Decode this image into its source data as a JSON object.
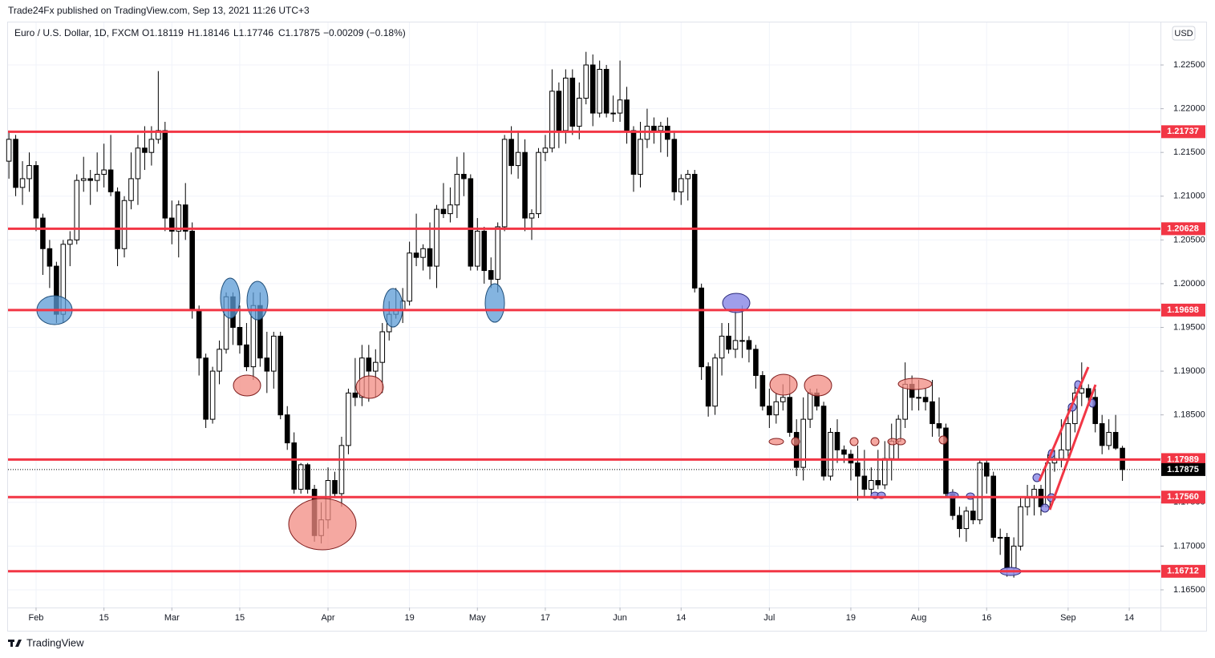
{
  "header": {
    "publisher": "Trade24Fx published on TradingView.com, Sep 13, 2021 11:26 UTC+3",
    "brand": "TradingView"
  },
  "chart_data": {
    "type": "candlestick",
    "title": "Euro / U.S. Dollar, 1D, FXCM",
    "legend_values": [
      "O1.18119",
      "H1.18146",
      "L1.17746",
      "C1.17875",
      "−0.00209 (−0.18%)"
    ],
    "currency": "USD",
    "up_color": "#ffffff",
    "down_color": "#000000",
    "level_color": "#f23645",
    "grid": true,
    "xlim": [
      -0.13,
      169.6
    ],
    "xticks": [
      {
        "value": 4,
        "label": "Feb"
      },
      {
        "value": 14,
        "label": "15"
      },
      {
        "value": 24,
        "label": "Mar"
      },
      {
        "value": 34,
        "label": "15"
      },
      {
        "value": 47,
        "label": "Apr"
      },
      {
        "value": 59,
        "label": "19"
      },
      {
        "value": 69,
        "label": "May"
      },
      {
        "value": 79,
        "label": "17"
      },
      {
        "value": 90,
        "label": "Jun"
      },
      {
        "value": 99,
        "label": "14"
      },
      {
        "value": 112,
        "label": "Jul"
      },
      {
        "value": 124,
        "label": "19"
      },
      {
        "value": 134,
        "label": "Aug"
      },
      {
        "value": 144,
        "label": "16"
      },
      {
        "value": 156,
        "label": "Sep"
      },
      {
        "value": 165,
        "label": "14"
      }
    ],
    "ylim": [
      1.16298,
      1.22986
    ],
    "yticks": [
      {
        "value": 1.165,
        "label": "1.16500"
      },
      {
        "value": 1.17,
        "label": "1.17000"
      },
      {
        "value": 1.175,
        "label": "1.17500"
      },
      {
        "value": 1.18,
        "label": "1.18000"
      },
      {
        "value": 1.185,
        "label": "1.18500"
      },
      {
        "value": 1.19,
        "label": "1.19000"
      },
      {
        "value": 1.195,
        "label": "1.19500"
      },
      {
        "value": 1.2,
        "label": "1.20000"
      },
      {
        "value": 1.205,
        "label": "1.20500"
      },
      {
        "value": 1.21,
        "label": "1.21000"
      },
      {
        "value": 1.215,
        "label": "1.21500"
      },
      {
        "value": 1.22,
        "label": "1.22000"
      },
      {
        "value": 1.225,
        "label": "1.22500"
      }
    ],
    "levels": [
      1.21737,
      1.20628,
      1.19698,
      1.17989,
      {
        "value": 1.1756,
        "label": "1.17560"
      },
      1.16712
    ],
    "last_price": 1.17875,
    "ohlc": [
      [
        1.214,
        1.2175,
        1.212,
        1.2165
      ],
      [
        1.2165,
        1.217,
        1.21,
        1.211
      ],
      [
        1.211,
        1.214,
        1.209,
        1.212
      ],
      [
        1.212,
        1.215,
        1.2105,
        1.2135
      ],
      [
        1.2135,
        1.214,
        1.206,
        1.2075
      ],
      [
        1.2075,
        1.208,
        1.201,
        1.204
      ],
      [
        1.204,
        1.205,
        1.1995,
        1.202
      ],
      [
        1.202,
        1.2025,
        1.1955,
        1.1965
      ],
      [
        1.1965,
        1.205,
        1.1955,
        1.2045
      ],
      [
        1.2045,
        1.206,
        1.202,
        1.205
      ],
      [
        1.205,
        1.2125,
        1.2045,
        1.2118
      ],
      [
        1.2118,
        1.2145,
        1.2105,
        1.212
      ],
      [
        1.212,
        1.213,
        1.209,
        1.2118
      ],
      [
        1.2118,
        1.215,
        1.2105,
        1.2125
      ],
      [
        1.2125,
        1.216,
        1.211,
        1.213
      ],
      [
        1.213,
        1.217,
        1.21,
        1.2105
      ],
      [
        1.2105,
        1.211,
        1.202,
        1.204
      ],
      [
        1.204,
        1.21,
        1.203,
        1.2095
      ],
      [
        1.2095,
        1.215,
        1.2085,
        1.212
      ],
      [
        1.212,
        1.217,
        1.209,
        1.2155
      ],
      [
        1.2155,
        1.218,
        1.213,
        1.215
      ],
      [
        1.215,
        1.218,
        1.2135,
        1.2165
      ],
      [
        1.2165,
        1.2243,
        1.216,
        1.2175
      ],
      [
        1.2175,
        1.2185,
        1.206,
        1.2075
      ],
      [
        1.2075,
        1.2095,
        1.2045,
        1.206
      ],
      [
        1.206,
        1.2095,
        1.203,
        1.209
      ],
      [
        1.209,
        1.2115,
        1.205,
        1.206
      ],
      [
        1.206,
        1.207,
        1.196,
        1.197
      ],
      [
        1.197,
        1.1975,
        1.1895,
        1.1915
      ],
      [
        1.1915,
        1.192,
        1.1835,
        1.1845
      ],
      [
        1.1845,
        1.1905,
        1.184,
        1.19
      ],
      [
        1.19,
        1.1935,
        1.1885,
        1.1925
      ],
      [
        1.1925,
        1.199,
        1.192,
        1.1985
      ],
      [
        1.1985,
        1.199,
        1.193,
        1.195
      ],
      [
        1.195,
        1.1975,
        1.192,
        1.193
      ],
      [
        1.193,
        1.1955,
        1.19,
        1.1905
      ],
      [
        1.1905,
        1.199,
        1.189,
        1.1975
      ],
      [
        1.1975,
        1.199,
        1.1905,
        1.1915
      ],
      [
        1.1915,
        1.1945,
        1.1875,
        1.19
      ],
      [
        1.19,
        1.1945,
        1.188,
        1.194
      ],
      [
        1.194,
        1.1945,
        1.1845,
        1.185
      ],
      [
        1.185,
        1.186,
        1.181,
        1.1818
      ],
      [
        1.1818,
        1.183,
        1.176,
        1.1765
      ],
      [
        1.1765,
        1.1795,
        1.176,
        1.1793
      ],
      [
        1.1793,
        1.1795,
        1.176,
        1.1765
      ],
      [
        1.1765,
        1.177,
        1.1705,
        1.1712
      ],
      [
        1.1712,
        1.175,
        1.1703,
        1.173
      ],
      [
        1.173,
        1.179,
        1.172,
        1.1775
      ],
      [
        1.1775,
        1.1785,
        1.1755,
        1.176
      ],
      [
        1.176,
        1.1825,
        1.1745,
        1.1815
      ],
      [
        1.1815,
        1.188,
        1.1805,
        1.1875
      ],
      [
        1.1875,
        1.1915,
        1.186,
        1.187
      ],
      [
        1.187,
        1.193,
        1.186,
        1.1915
      ],
      [
        1.1915,
        1.193,
        1.1865,
        1.19
      ],
      [
        1.19,
        1.1925,
        1.187,
        1.191
      ],
      [
        1.191,
        1.1955,
        1.1875,
        1.1945
      ],
      [
        1.1945,
        1.198,
        1.1935,
        1.1965
      ],
      [
        1.1965,
        1.1995,
        1.196,
        1.197
      ],
      [
        1.197,
        1.1995,
        1.1955,
        1.198
      ],
      [
        1.198,
        1.2048,
        1.1975,
        1.2035
      ],
      [
        1.2035,
        1.208,
        1.202,
        1.203
      ],
      [
        1.203,
        1.2045,
        1.2015,
        1.204
      ],
      [
        1.204,
        1.207,
        1.2005,
        1.202
      ],
      [
        1.202,
        1.209,
        1.1995,
        1.2085
      ],
      [
        1.2085,
        1.2115,
        1.2075,
        1.208
      ],
      [
        1.208,
        1.211,
        1.207,
        1.209
      ],
      [
        1.209,
        1.2145,
        1.2075,
        1.2125
      ],
      [
        1.2125,
        1.215,
        1.21,
        1.212
      ],
      [
        1.212,
        1.2125,
        1.2015,
        1.202
      ],
      [
        1.202,
        1.2075,
        1.2015,
        1.206
      ],
      [
        1.206,
        1.2065,
        1.2,
        1.2015
      ],
      [
        1.2015,
        1.203,
        1.1995,
        1.2005
      ],
      [
        1.2005,
        1.207,
        1.199,
        1.2065
      ],
      [
        1.2065,
        1.217,
        1.206,
        1.2165
      ],
      [
        1.2165,
        1.218,
        1.2125,
        1.2135
      ],
      [
        1.2135,
        1.2175,
        1.212,
        1.215
      ],
      [
        1.215,
        1.2165,
        1.206,
        1.2075
      ],
      [
        1.2075,
        1.2085,
        1.205,
        1.208
      ],
      [
        1.208,
        1.2155,
        1.2075,
        1.215
      ],
      [
        1.215,
        1.217,
        1.214,
        1.2155
      ],
      [
        1.2155,
        1.2245,
        1.215,
        1.222
      ],
      [
        1.222,
        1.223,
        1.2155,
        1.2175
      ],
      [
        1.2175,
        1.2245,
        1.216,
        1.2235
      ],
      [
        1.2235,
        1.2245,
        1.217,
        1.218
      ],
      [
        1.218,
        1.223,
        1.2165,
        1.2212
      ],
      [
        1.2212,
        1.2265,
        1.2205,
        1.225
      ],
      [
        1.225,
        1.2262,
        1.218,
        1.2195
      ],
      [
        1.2195,
        1.2255,
        1.219,
        1.2245
      ],
      [
        1.2245,
        1.225,
        1.219,
        1.2195
      ],
      [
        1.2195,
        1.2215,
        1.2185,
        1.2195
      ],
      [
        1.2195,
        1.2255,
        1.2185,
        1.221
      ],
      [
        1.221,
        1.2225,
        1.216,
        1.2175
      ],
      [
        1.2175,
        1.218,
        1.2105,
        1.2125
      ],
      [
        1.2125,
        1.2185,
        1.211,
        1.2165
      ],
      [
        1.2165,
        1.22,
        1.2155,
        1.218
      ],
      [
        1.218,
        1.219,
        1.216,
        1.2175
      ],
      [
        1.2175,
        1.2185,
        1.215,
        1.218
      ],
      [
        1.218,
        1.219,
        1.2145,
        1.2165
      ],
      [
        1.2165,
        1.2175,
        1.2095,
        1.2105
      ],
      [
        1.2105,
        1.2125,
        1.209,
        1.212
      ],
      [
        1.212,
        1.213,
        1.2095,
        1.2125
      ],
      [
        1.2125,
        1.213,
        1.199,
        1.1995
      ],
      [
        1.1995,
        1.2,
        1.189,
        1.1905
      ],
      [
        1.1905,
        1.191,
        1.1848,
        1.186
      ],
      [
        1.186,
        1.192,
        1.185,
        1.1915
      ],
      [
        1.1915,
        1.1955,
        1.1895,
        1.194
      ],
      [
        1.194,
        1.1955,
        1.192,
        1.1925
      ],
      [
        1.1925,
        1.197,
        1.1915,
        1.1935
      ],
      [
        1.1935,
        1.1975,
        1.1915,
        1.1935
      ],
      [
        1.1935,
        1.194,
        1.191,
        1.1925
      ],
      [
        1.1925,
        1.193,
        1.188,
        1.1895
      ],
      [
        1.1895,
        1.19,
        1.1855,
        1.186
      ],
      [
        1.186,
        1.188,
        1.1835,
        1.185
      ],
      [
        1.185,
        1.1875,
        1.184,
        1.1865
      ],
      [
        1.1865,
        1.1885,
        1.1855,
        1.187
      ],
      [
        1.187,
        1.1895,
        1.1825,
        1.183
      ],
      [
        1.183,
        1.1845,
        1.178,
        1.179
      ],
      [
        1.179,
        1.187,
        1.1775,
        1.1845
      ],
      [
        1.1845,
        1.188,
        1.1835,
        1.1875
      ],
      [
        1.1875,
        1.188,
        1.1855,
        1.186
      ],
      [
        1.186,
        1.1865,
        1.1775,
        1.178
      ],
      [
        1.178,
        1.1835,
        1.1775,
        1.183
      ],
      [
        1.183,
        1.1845,
        1.1795,
        1.181
      ],
      [
        1.181,
        1.1815,
        1.1795,
        1.1805
      ],
      [
        1.1805,
        1.181,
        1.1775,
        1.1795
      ],
      [
        1.1795,
        1.1815,
        1.1752,
        1.178
      ],
      [
        1.178,
        1.181,
        1.1755,
        1.1765
      ],
      [
        1.1765,
        1.179,
        1.176,
        1.1775
      ],
      [
        1.1775,
        1.181,
        1.1765,
        1.177
      ],
      [
        1.177,
        1.182,
        1.1765,
        1.18
      ],
      [
        1.18,
        1.184,
        1.1775,
        1.182
      ],
      [
        1.182,
        1.185,
        1.18,
        1.1845
      ],
      [
        1.1845,
        1.191,
        1.1835,
        1.1885
      ],
      [
        1.1885,
        1.1895,
        1.1855,
        1.187
      ],
      [
        1.187,
        1.189,
        1.1855,
        1.187
      ],
      [
        1.187,
        1.188,
        1.1855,
        1.1865
      ],
      [
        1.1865,
        1.189,
        1.1825,
        1.184
      ],
      [
        1.184,
        1.187,
        1.1825,
        1.1835
      ],
      [
        1.1835,
        1.184,
        1.1755,
        1.176
      ],
      [
        1.176,
        1.1765,
        1.173,
        1.1735
      ],
      [
        1.1735,
        1.1745,
        1.171,
        1.172
      ],
      [
        1.172,
        1.1745,
        1.1705,
        1.174
      ],
      [
        1.174,
        1.1755,
        1.1725,
        1.173
      ],
      [
        1.173,
        1.18,
        1.1725,
        1.1795
      ],
      [
        1.1795,
        1.18,
        1.176,
        1.178
      ],
      [
        1.178,
        1.1785,
        1.1705,
        1.171
      ],
      [
        1.171,
        1.172,
        1.169,
        1.171
      ],
      [
        1.171,
        1.1715,
        1.1665,
        1.1675
      ],
      [
        1.1675,
        1.171,
        1.1664,
        1.17
      ],
      [
        1.17,
        1.1755,
        1.1695,
        1.1745
      ],
      [
        1.1745,
        1.177,
        1.1735,
        1.1755
      ],
      [
        1.1755,
        1.177,
        1.1735,
        1.1765
      ],
      [
        1.1765,
        1.177,
        1.1735,
        1.1745
      ],
      [
        1.1745,
        1.1805,
        1.1745,
        1.1795
      ],
      [
        1.1795,
        1.181,
        1.1785,
        1.18
      ],
      [
        1.18,
        1.1845,
        1.179,
        1.181
      ],
      [
        1.181,
        1.1857,
        1.18,
        1.184
      ],
      [
        1.184,
        1.1885,
        1.183,
        1.1875
      ],
      [
        1.1875,
        1.191,
        1.186,
        1.188
      ],
      [
        1.188,
        1.1885,
        1.186,
        1.187
      ],
      [
        1.187,
        1.188,
        1.183,
        1.184
      ],
      [
        1.184,
        1.185,
        1.1805,
        1.1815
      ],
      [
        1.1815,
        1.1845,
        1.181,
        1.183
      ],
      [
        1.183,
        1.185,
        1.181,
        1.1812
      ],
      [
        1.18119,
        1.18146,
        1.17746,
        1.17875
      ]
    ]
  }
}
